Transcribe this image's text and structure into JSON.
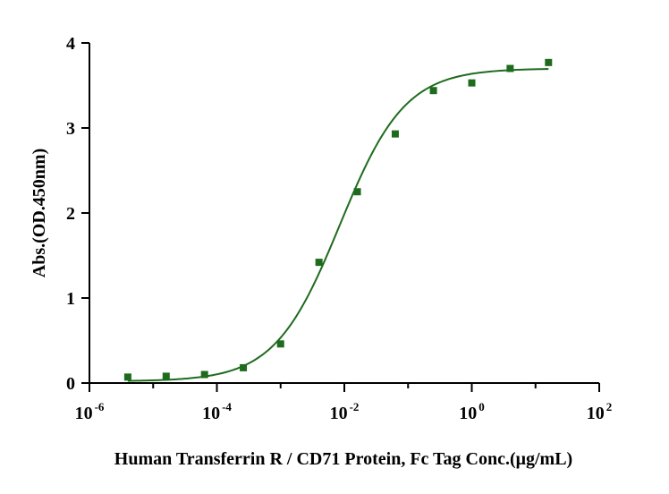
{
  "chart_data": {
    "type": "scatter",
    "xscale": "log10",
    "xlabel": "Human Transferrin R / CD71 Protein, Fc Tag  Conc.(μg/mL)",
    "ylabel": "Abs.(OD.450nm)",
    "xlim": [
      1e-06,
      100
    ],
    "ylim": [
      0,
      4
    ],
    "x_ticks": [
      {
        "base": "10",
        "exp": "-6"
      },
      {
        "base": "10",
        "exp": "-4"
      },
      {
        "base": "10",
        "exp": "-2"
      },
      {
        "base": "10",
        "exp": "0"
      },
      {
        "base": "10",
        "exp": "2"
      }
    ],
    "y_ticks": [
      "0",
      "1",
      "2",
      "3",
      "4"
    ],
    "grid": false,
    "colors": {
      "series": "#1e6b1e",
      "axis": "#000000"
    },
    "series": [
      {
        "x": [
          4e-06,
          1.6e-05,
          6.4e-05,
          0.00026,
          0.001,
          0.004,
          0.016,
          0.063,
          0.25,
          1.0,
          4.0,
          16.0
        ],
        "y": [
          0.07,
          0.08,
          0.1,
          0.18,
          0.46,
          1.42,
          2.25,
          2.93,
          3.44,
          3.53,
          3.7,
          3.77
        ]
      }
    ],
    "fit": {
      "bottom": 0.02,
      "top": 3.7,
      "ec50": 0.0085,
      "hill": 0.85
    }
  }
}
